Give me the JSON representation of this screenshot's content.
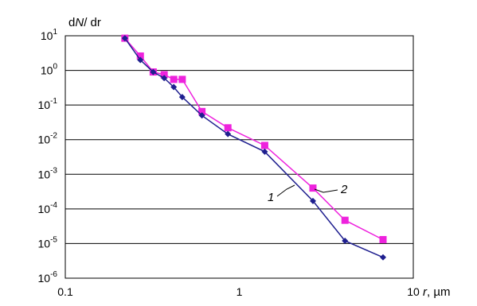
{
  "chart_data": {
    "type": "line",
    "scale": {
      "x": "log",
      "y": "log"
    },
    "xlim": [
      0.1,
      10
    ],
    "ylim": [
      1e-06,
      10
    ],
    "grid": {
      "horizontal": true,
      "vertical": false
    },
    "ylabel": {
      "prefix": "d",
      "italic": "N",
      "suffix": "/ dr"
    },
    "xlabel": {
      "italic": "r",
      "suffix": ", µm"
    },
    "x_ticks": [
      {
        "value": 0.1,
        "label": "0.1"
      },
      {
        "value": 1,
        "label": "1"
      },
      {
        "value": 10,
        "label": "10"
      }
    ],
    "y_ticks": [
      {
        "value": 10,
        "base": "10",
        "exp": "1"
      },
      {
        "value": 1,
        "base": "10",
        "exp": "0"
      },
      {
        "value": 0.1,
        "base": "10",
        "exp": "-1"
      },
      {
        "value": 0.01,
        "base": "10",
        "exp": "-2"
      },
      {
        "value": 0.001,
        "base": "10",
        "exp": "-3"
      },
      {
        "value": 0.0001,
        "base": "10",
        "exp": "-4"
      },
      {
        "value": 1e-05,
        "base": "10",
        "exp": "-5"
      },
      {
        "value": 1e-06,
        "base": "10",
        "exp": "-6"
      }
    ],
    "series": [
      {
        "name": "1",
        "color": "#1f1f8f",
        "marker": "diamond",
        "x": [
          0.22,
          0.27,
          0.32,
          0.37,
          0.42,
          0.47,
          0.61,
          0.86,
          1.4,
          2.65,
          4.05,
          6.7
        ],
        "y": [
          8.5,
          2.0,
          0.9,
          0.6,
          0.33,
          0.17,
          0.05,
          0.0145,
          0.0045,
          0.00017,
          1.2e-05,
          4e-06
        ]
      },
      {
        "name": "2",
        "color": "#ee22dd",
        "marker": "square",
        "x": [
          0.22,
          0.27,
          0.32,
          0.37,
          0.42,
          0.47,
          0.61,
          0.86,
          1.4,
          2.65,
          4.05,
          6.7
        ],
        "y": [
          8.5,
          2.6,
          0.9,
          0.75,
          0.55,
          0.55,
          0.065,
          0.022,
          0.0068,
          0.0004,
          4.7e-05,
          1.3e-05
        ]
      }
    ]
  }
}
